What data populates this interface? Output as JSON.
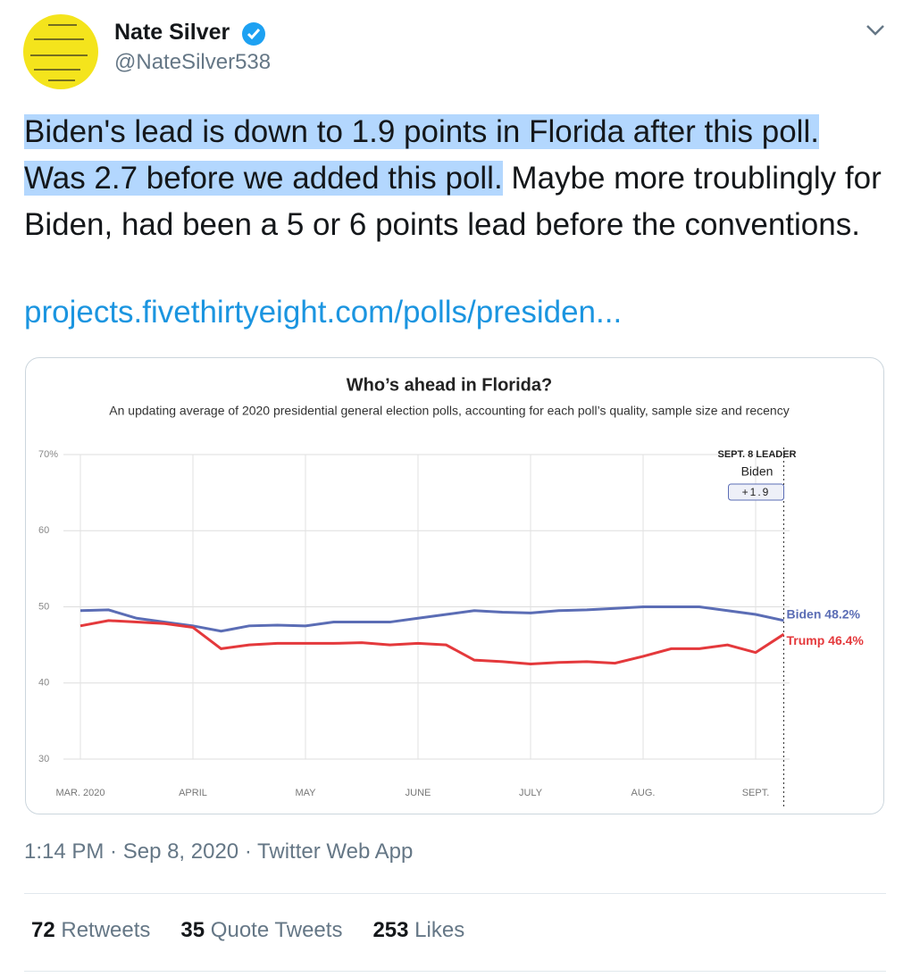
{
  "tweet": {
    "name": "Nate Silver",
    "handle": "@NateSilver538",
    "text_highlighted": "Biden's lead is down to 1.9 points in Florida after this poll. Was 2.7 before we added this poll.",
    "text_rest": " Maybe more troublingly for Biden, had been a 5 or 6 points lead before the conventions.",
    "link": "projects.fivethirtyeight.com/polls/presiden...",
    "timestamp": "1:14 PM · Sep 8, 2020 · Twitter Web App",
    "stats": [
      {
        "count": "72",
        "label": "Retweets"
      },
      {
        "count": "35",
        "label": "Quote Tweets"
      },
      {
        "count": "253",
        "label": "Likes"
      }
    ]
  },
  "chart_data": {
    "type": "line",
    "title": "Who’s ahead in Florida?",
    "subtitle": "An updating average of 2020 presidential general election polls, accounting for each poll’s quality, sample size and recency",
    "categories": [
      "MAR. 2020",
      null,
      null,
      null,
      "APRIL",
      null,
      null,
      null,
      "MAY",
      null,
      null,
      null,
      "JUNE",
      null,
      null,
      null,
      "JULY",
      null,
      null,
      null,
      "AUG.",
      null,
      null,
      null,
      "SEPT.",
      null
    ],
    "series": [
      {
        "name": "Biden",
        "color": "#5b6db5",
        "end_label": "Biden 48.2%",
        "values": [
          49.5,
          49.6,
          48.5,
          48.0,
          47.5,
          46.8,
          47.5,
          47.6,
          47.5,
          48.0,
          48.0,
          48.0,
          48.5,
          49.0,
          49.5,
          49.3,
          49.2,
          49.5,
          49.6,
          49.8,
          50.0,
          50.0,
          50.0,
          49.5,
          49.0,
          48.2
        ]
      },
      {
        "name": "Trump",
        "color": "#e4393c",
        "end_label": "Trump 46.4%",
        "values": [
          47.5,
          48.2,
          48.0,
          47.8,
          47.3,
          44.5,
          45.0,
          45.2,
          45.2,
          45.2,
          45.3,
          45.0,
          45.2,
          45.0,
          43.0,
          42.8,
          42.5,
          42.7,
          42.8,
          42.6,
          43.5,
          44.5,
          44.5,
          45.0,
          44.0,
          46.4
        ]
      }
    ],
    "ylim": [
      30,
      70
    ],
    "yticks": [
      30,
      40,
      50,
      60,
      {
        "value": 70,
        "label": "70%"
      }
    ],
    "grid": true,
    "annotation": {
      "heading": "SEPT. 8 LEADER",
      "leader": "Biden",
      "lead_label": "+1.9"
    }
  }
}
